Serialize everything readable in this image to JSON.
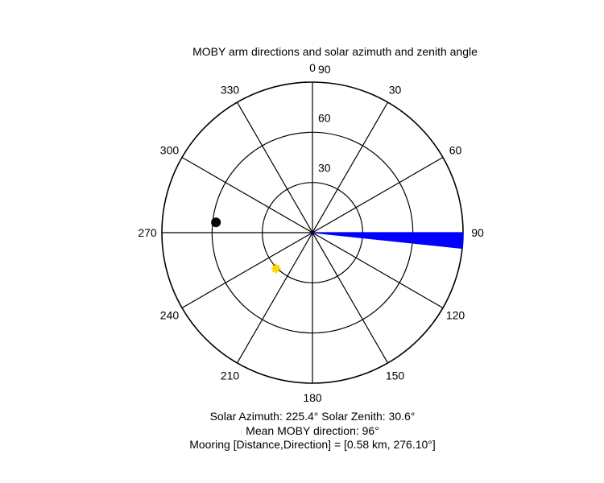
{
  "chart_data": {
    "type": "polar",
    "title": "MOBY arm directions and solar azimuth and zenith angle",
    "radial_axis": {
      "max": 90,
      "ticks": [
        30,
        60,
        90
      ]
    },
    "angular_axis": {
      "direction": "clockwise",
      "zero_at": "top",
      "tick_labels": [
        "0",
        "30",
        "60",
        "90",
        "120",
        "150",
        "180",
        "210",
        "240",
        "270",
        "300",
        "330"
      ]
    },
    "mooring_wedge": {
      "color": "#0000ff",
      "angle_start": 90,
      "angle_end": 96
    },
    "points": [
      {
        "azimuth": 276.1,
        "radius": 58,
        "color": "#000000",
        "marker": "dot"
      },
      {
        "azimuth": 225.4,
        "radius": 30.6,
        "color": "#ffd700",
        "marker": "star"
      }
    ],
    "footer_lines": [
      "Solar Azimuth: 225.4°   Solar Zenith: 30.6°",
      "Mean MOBY direction: 96°",
      "Mooring [Distance,Direction] = [0.58 km, 276.10°]"
    ]
  }
}
